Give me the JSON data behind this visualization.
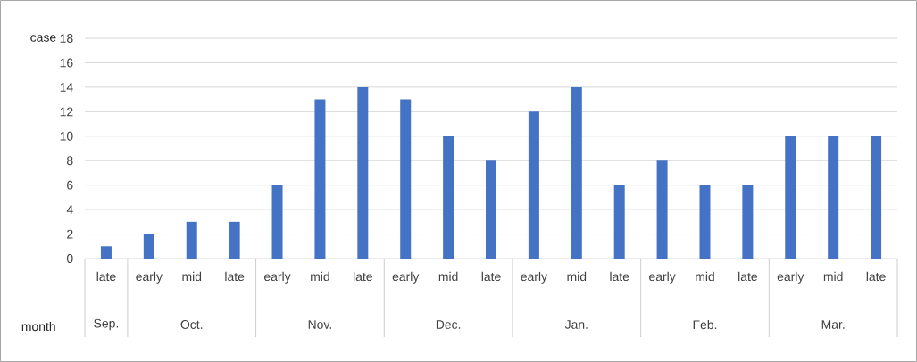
{
  "chart_data": {
    "type": "bar",
    "xlabel": "month",
    "ylabel": "case",
    "categories": [
      "late",
      "early",
      "mid",
      "late",
      "early",
      "mid",
      "late",
      "early",
      "mid",
      "late",
      "early",
      "mid",
      "late",
      "early",
      "mid",
      "late",
      "early",
      "mid",
      "late"
    ],
    "values": [
      1,
      2,
      3,
      3,
      6,
      13,
      14,
      13,
      10,
      8,
      12,
      14,
      6,
      8,
      6,
      6,
      10,
      10,
      10
    ],
    "color": "#4472c4",
    "ylim": [
      0,
      18
    ],
    "yticks": [
      0,
      2,
      4,
      6,
      8,
      10,
      12,
      14,
      16,
      18
    ],
    "grid": "y",
    "annotations": [
      "Sep.",
      "Oct.",
      "Nov.",
      "Dec.",
      "Jan.",
      "Feb.",
      "Mar."
    ]
  }
}
